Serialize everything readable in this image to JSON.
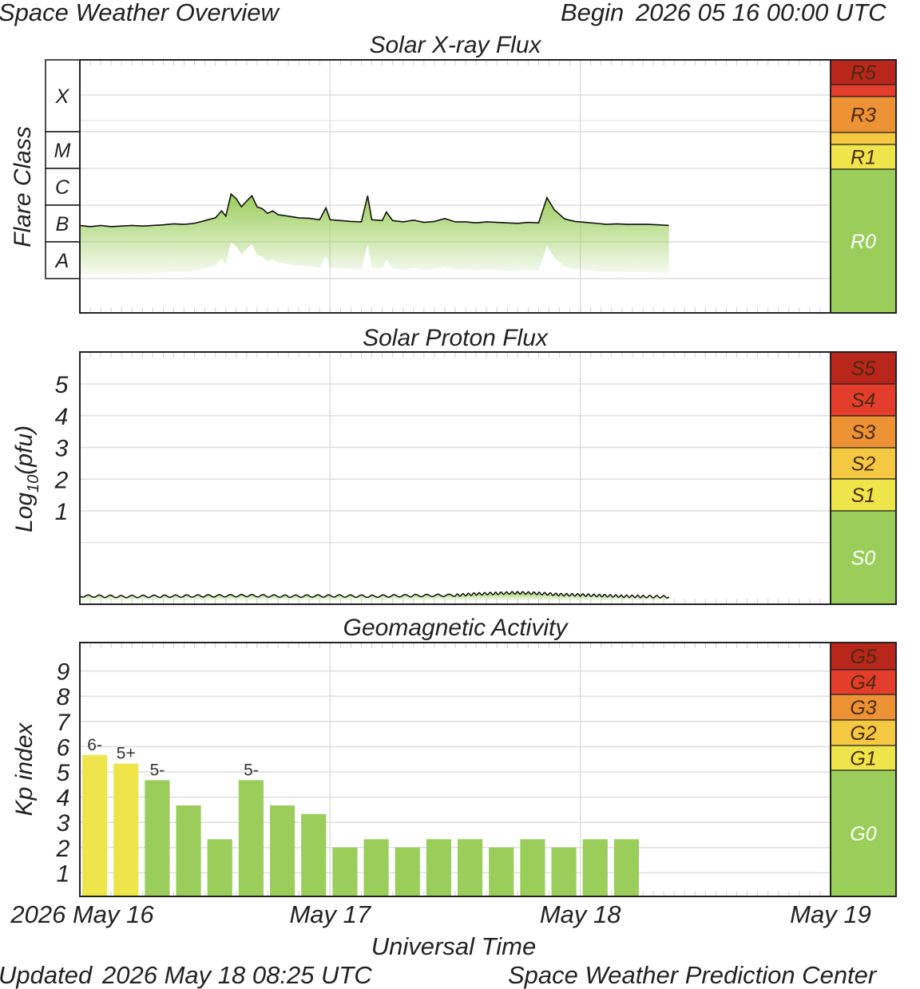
{
  "header": {
    "title": "Space Weather Overview",
    "begin_label": "Begin",
    "begin_value": "2026 05 16 00:00 UTC"
  },
  "footer": {
    "updated_label": "Updated",
    "updated_value": "2026 May 18 08:25 UTC",
    "source": "Space Weather Prediction Center"
  },
  "colors": {
    "green": "#9acd5a",
    "yellow": "#eee54a",
    "light_orange": "#f5c842",
    "orange": "#ec9235",
    "red": "#e43d2b",
    "dark_red": "#b8261c",
    "frame": "#222222",
    "grid": "#dddddd"
  },
  "chart_data": [
    {
      "type": "area",
      "title": "Solar X-ray Flux",
      "ylabel": "Flare Class",
      "y_scale": "log",
      "y_classes": [
        "X",
        "M",
        "C",
        "B",
        "A"
      ],
      "x_ticks": [
        "2026 May 16",
        "May 17",
        "May 18",
        "May 19"
      ],
      "x_range_hours": [
        0,
        72
      ],
      "data_end_hour": 56.5,
      "series": [
        {
          "x": [
            0,
            1,
            2,
            3,
            4,
            5,
            6,
            7,
            8,
            9,
            10,
            11,
            12,
            13,
            13.6,
            14,
            14.5,
            15,
            15.5,
            16,
            16.5,
            17,
            17.5,
            18,
            18.5,
            19,
            20,
            21,
            22,
            23,
            23.6,
            24,
            25,
            26,
            27,
            27.6,
            28,
            29,
            29.4,
            30,
            31,
            32,
            33,
            34,
            35,
            36,
            37,
            38,
            39,
            40,
            41,
            42,
            43,
            44,
            44.8,
            45.5,
            46.5,
            47.5,
            48.5,
            49.5,
            50.5,
            51.5,
            52.5,
            53.5,
            54.5,
            55.5,
            56.5
          ],
          "y": [
            2.8e-07,
            2.6e-07,
            2.8e-07,
            2.6e-07,
            2.7e-07,
            2.8e-07,
            2.7e-07,
            2.8e-07,
            2.9e-07,
            3.1e-07,
            3e-07,
            3.2e-07,
            3.8e-07,
            4.5e-07,
            7e-07,
            5e-07,
            2e-06,
            1.5e-06,
            9e-07,
            1.3e-06,
            1.8e-06,
            9e-07,
            8e-07,
            6e-07,
            7e-07,
            5.5e-07,
            5e-07,
            4.5e-07,
            4.4e-07,
            4e-07,
            8.5e-07,
            4e-07,
            3.8e-07,
            3.6e-07,
            3.5e-07,
            1.8e-06,
            4e-07,
            3.8e-07,
            6.5e-07,
            3.8e-07,
            3.5e-07,
            3.9e-07,
            3.4e-07,
            3.6e-07,
            4.3e-07,
            3.5e-07,
            3.5e-07,
            3.3e-07,
            3.5e-07,
            3.4e-07,
            3.3e-07,
            3.2e-07,
            3.4e-07,
            3.3e-07,
            1.6e-06,
            7.5e-07,
            4.2e-07,
            3.6e-07,
            3.4e-07,
            3.2e-07,
            3e-07,
            3.1e-07,
            3e-07,
            3e-07,
            3e-07,
            2.9e-07,
            2.8e-07
          ]
        }
      ],
      "scale_labels": [
        "R5",
        "R3",
        "R1",
        "R0"
      ]
    },
    {
      "type": "area",
      "title": "Solar Proton Flux",
      "ylabel": "Log10(pfu)",
      "ylabel_base": "Log",
      "ylabel_sub": "10",
      "ylabel_unit": "(pfu)",
      "y_ticks": [
        "1",
        "2",
        "3",
        "4",
        "5"
      ],
      "x_range_hours": [
        0,
        72
      ],
      "data_end_hour": 56.5,
      "series": [
        {
          "x": [
            0,
            4,
            8,
            12,
            16,
            20,
            24,
            28,
            32,
            36,
            38,
            40,
            42,
            44,
            46,
            48,
            50,
            52,
            54,
            56.5
          ],
          "y": [
            -1.68,
            -1.7,
            -1.69,
            -1.68,
            -1.67,
            -1.69,
            -1.68,
            -1.69,
            -1.67,
            -1.66,
            -1.62,
            -1.6,
            -1.58,
            -1.6,
            -1.64,
            -1.65,
            -1.67,
            -1.69,
            -1.7,
            -1.71
          ]
        }
      ],
      "scale_labels": [
        "S5",
        "S4",
        "S3",
        "S2",
        "S1",
        "S0"
      ]
    },
    {
      "type": "bar",
      "title": "Geomagnetic Activity",
      "ylabel": "Kp index",
      "xlabel": "Universal Time",
      "y_ticks": [
        "1",
        "2",
        "3",
        "4",
        "5",
        "6",
        "7",
        "8",
        "9"
      ],
      "ylim": [
        0,
        10
      ],
      "bar_hours": 3,
      "x_range_hours": [
        0,
        72
      ],
      "values": [
        5.67,
        5.33,
        4.67,
        3.67,
        2.33,
        4.67,
        3.67,
        3.33,
        2.0,
        2.33,
        2.0,
        2.33,
        2.33,
        2.0,
        2.33,
        2.0,
        2.33,
        2.33
      ],
      "bar_labels": [
        "6-",
        "5+",
        "5-",
        "",
        "",
        "5-",
        "",
        "",
        "",
        "",
        "",
        "",
        "",
        "",
        "",
        "",
        "",
        ""
      ],
      "scale_labels": [
        "G5",
        "G4",
        "G3",
        "G2",
        "G1",
        "G0"
      ]
    }
  ]
}
